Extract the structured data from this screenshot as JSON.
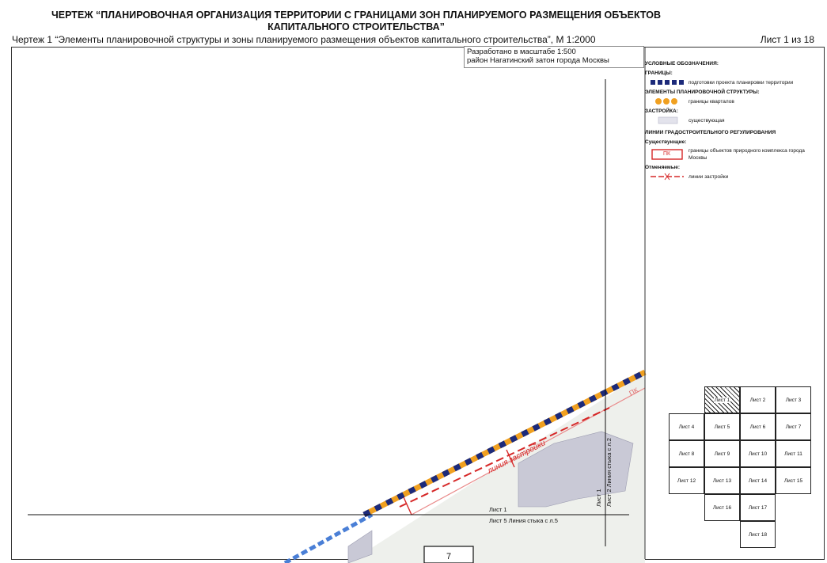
{
  "header": {
    "title": "ЧЕРТЕЖ “ПЛАНИРОВОЧНАЯ ОРГАНИЗАЦИЯ ТЕРРИТОРИИ С ГРАНИЦАМИ ЗОН ПЛАНИРУЕМОГО РАЗМЕЩЕНИЯ ОБЪЕКТОВ КАПИТАЛЬНОГО СТРОИТЕЛЬСТВА”",
    "subtitle": "Чертеж 1 “Элементы планировочной структуры и зоны планируемого размещения объектов капитального строительства”, М 1:2000",
    "sheet": "Лист 1 из 18"
  },
  "info": {
    "scale_line": "Разработано в масштабе 1:500",
    "district_line": "район Нагатинский затон города Москвы"
  },
  "legend": {
    "title": "УСЛОВНЫЕ ОБОЗНАЧЕНИЯ:",
    "boundaries_heading": "ГРАНИЦЫ:",
    "boundary_project": "подготовки проекта планировки территории",
    "elements_heading": "ЭЛЕМЕНТЫ ПЛАНИРОВОЧНОЙ СТРУКТУРЫ:",
    "block_boundaries": "границы кварталов",
    "buildings_heading": "ЗАСТРОЙКА:",
    "existing": "существующая",
    "lines_heading": "ЛИНИИ ГРАДОСТРОИТЕЛЬНОГО РЕГУЛИРОВАНИЯ",
    "existing_heading": "Существующие:",
    "pk_symbol": "ПК",
    "pk_text": "границы объектов природного комплекса города Москвы",
    "cancelled_heading": "Отменяемые:",
    "building_line": "линии застройки"
  },
  "map": {
    "sheet_label_top": "Лист 1",
    "sheet_label_bottom": "Лист 5 Линия стыка с л.5",
    "vertical_label_left": "Лист 1",
    "vertical_label_right": "Лист 2 Линия стыка с л.2",
    "building_line_label": "линия застройки",
    "pk_label": "ПК",
    "block_number": "7"
  },
  "sheet_grid": {
    "cells": [
      {
        "label": "Лист 1",
        "col": 1,
        "row": 0,
        "current": true
      },
      {
        "label": "Лист 2",
        "col": 2,
        "row": 0
      },
      {
        "label": "Лист 3",
        "col": 3,
        "row": 0
      },
      {
        "label": "Лист 4",
        "col": 0,
        "row": 1
      },
      {
        "label": "Лист 5",
        "col": 1,
        "row": 1
      },
      {
        "label": "Лист 6",
        "col": 2,
        "row": 1
      },
      {
        "label": "Лист 7",
        "col": 3,
        "row": 1
      },
      {
        "label": "Лист 8",
        "col": 0,
        "row": 2
      },
      {
        "label": "Лист 9",
        "col": 1,
        "row": 2
      },
      {
        "label": "Лист 10",
        "col": 2,
        "row": 2
      },
      {
        "label": "Лист 11",
        "col": 3,
        "row": 2
      },
      {
        "label": "Лист 12",
        "col": 0,
        "row": 3
      },
      {
        "label": "Лист 13",
        "col": 1,
        "row": 3
      },
      {
        "label": "Лист 14",
        "col": 2,
        "row": 3
      },
      {
        "label": "Лист 15",
        "col": 3,
        "row": 3
      },
      {
        "label": "Лист 16",
        "col": 1,
        "row": 4
      },
      {
        "label": "Лист 17",
        "col": 2,
        "row": 4
      },
      {
        "label": "Лист 18",
        "col": 2,
        "row": 5
      }
    ]
  },
  "colors": {
    "project_boundary": "#1c2a7a",
    "block_boundary": "#f0a020",
    "building_line": "#d62828",
    "existing_building": "#c9c9d6",
    "water": "#4a7fd6"
  }
}
